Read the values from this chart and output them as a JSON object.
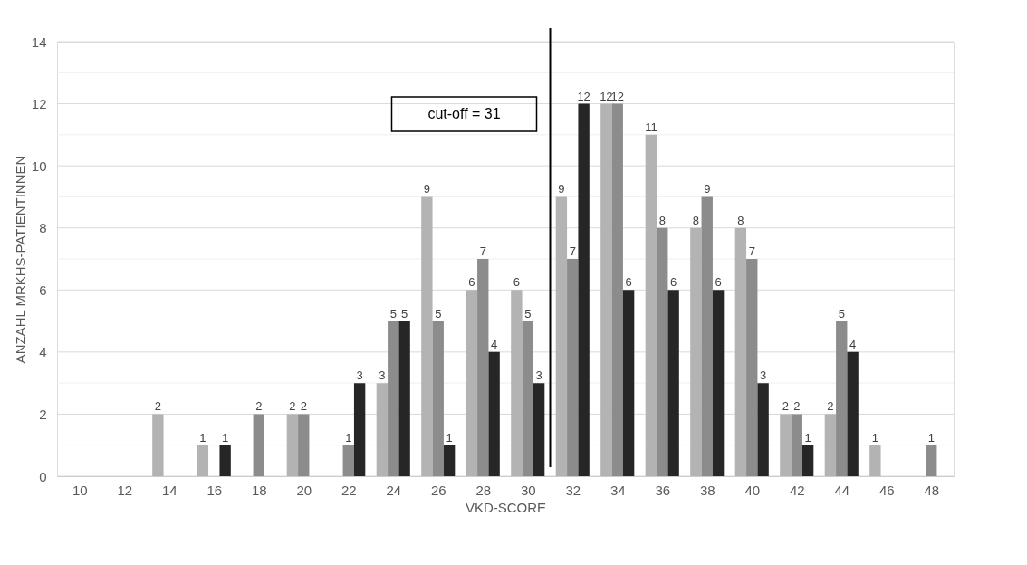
{
  "chart_data": {
    "type": "bar",
    "x": [
      10,
      12,
      14,
      16,
      18,
      20,
      22,
      24,
      26,
      28,
      30,
      32,
      34,
      36,
      38,
      40,
      42,
      44,
      46,
      48
    ],
    "series": [
      {
        "color": "#b3b3b3",
        "values": [
          0,
          0,
          2,
          1,
          0,
          2,
          0,
          3,
          9,
          6,
          6,
          9,
          12,
          11,
          8,
          8,
          2,
          2,
          1,
          0
        ],
        "value_labels": [
          null,
          null,
          "2",
          "1",
          null,
          "2",
          null,
          "3",
          "9",
          "6",
          "6",
          "9",
          "12",
          "11",
          "8",
          "8",
          "2",
          "2",
          "1",
          null
        ]
      },
      {
        "color": "#8c8c8c",
        "values": [
          0,
          0,
          0,
          0,
          2,
          2,
          1,
          5,
          5,
          7,
          5,
          7,
          12,
          8,
          9,
          7,
          2,
          5,
          0,
          1
        ],
        "value_labels": [
          null,
          null,
          null,
          null,
          "2",
          "2",
          "1",
          "5",
          "5",
          "7",
          "5",
          "7",
          "12",
          "8",
          "9",
          "7",
          "2",
          "5",
          null,
          "1"
        ]
      },
      {
        "color": "#262626",
        "values": [
          0,
          0,
          0,
          1,
          0,
          0,
          3,
          5,
          1,
          4,
          3,
          12,
          6,
          6,
          6,
          3,
          1,
          4,
          0,
          0
        ],
        "value_labels": [
          null,
          null,
          null,
          "1",
          null,
          null,
          "3",
          "5",
          "1",
          "4",
          "3",
          "12",
          "6",
          "6",
          "6",
          "3",
          "1",
          "4",
          null,
          null
        ]
      }
    ],
    "xlim": [
      9,
      49
    ],
    "xticks": [
      10,
      12,
      14,
      16,
      18,
      20,
      22,
      24,
      26,
      28,
      30,
      32,
      34,
      36,
      38,
      40,
      42,
      44,
      46,
      48
    ],
    "ylim": [
      0,
      14
    ],
    "yticks": [
      0,
      {
        "value": 1,
        "label": null
      },
      2,
      {
        "value": 3,
        "label": null
      },
      4,
      {
        "value": 5,
        "label": null
      },
      6,
      {
        "value": 7,
        "label": null
      },
      8,
      {
        "value": 9,
        "label": null
      },
      10,
      {
        "value": 11,
        "label": null
      },
      12,
      {
        "value": 13,
        "label": null
      },
      14
    ],
    "xlabel": "VKD-SCORE",
    "ylabel": "ANZAHL MRKHS-PATIENTINNEN",
    "grid": "y",
    "legend": false,
    "ref_lines": [
      {
        "axis": "x",
        "value": 31,
        "label": "cut-off = 31",
        "color": "#000000"
      }
    ]
  }
}
